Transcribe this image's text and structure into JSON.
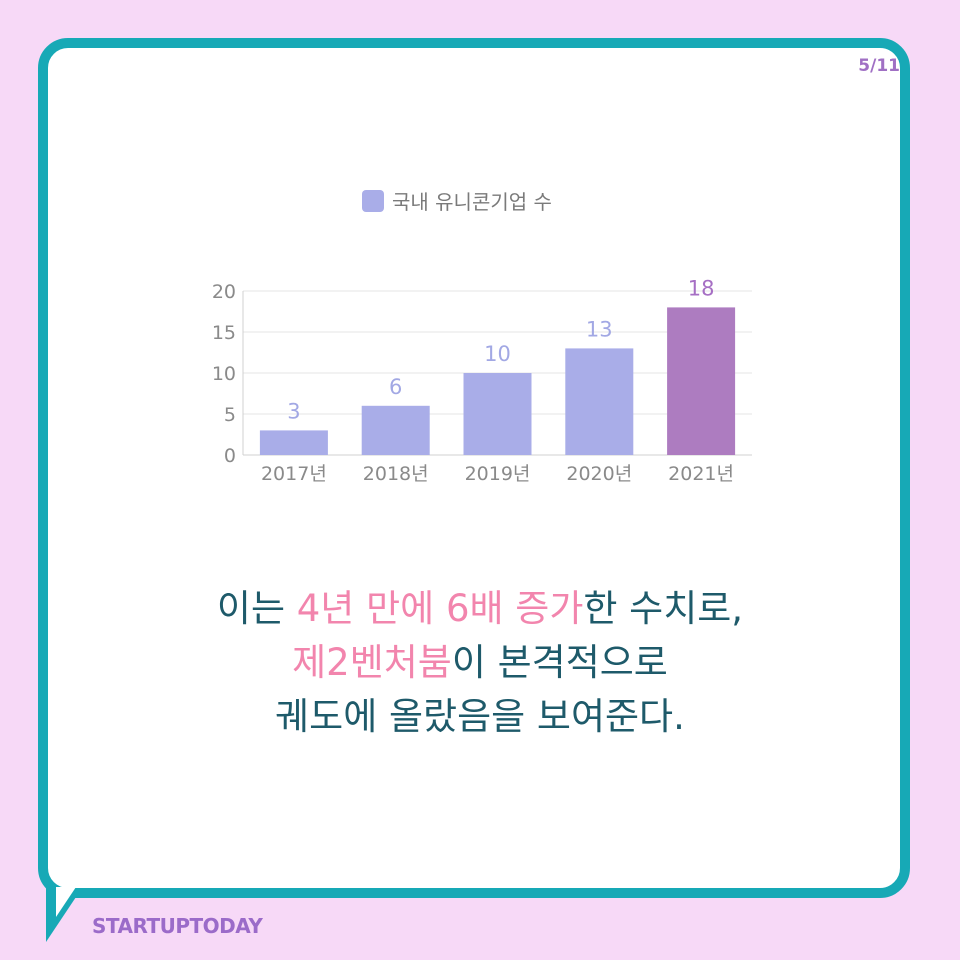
{
  "page_indicator": "5/11",
  "brand": "STARTUPTODAY",
  "colors": {
    "background": "#f7d9f7",
    "card_border": "#17a9b6",
    "bar_default": "#a9ade8",
    "bar_highlight": "#ad7cc0",
    "caption_text": "#1e5a6a",
    "caption_highlight": "#f285ad"
  },
  "chart_data": {
    "type": "bar",
    "legend": "국내 유니콘기업 수",
    "categories": [
      "2017년",
      "2018년",
      "2019년",
      "2020년",
      "2021년"
    ],
    "series": [
      {
        "name": "국내 유니콘기업 수",
        "values": [
          3,
          6,
          10,
          13,
          18
        ]
      }
    ],
    "highlight_index": 4,
    "ylim": [
      0,
      20
    ],
    "yticks": [
      0,
      5,
      10,
      15,
      20
    ],
    "grid": true,
    "legend_position": "top"
  },
  "caption": {
    "line1": [
      {
        "text": "이는 ",
        "hl": false
      },
      {
        "text": "4년 만에 6배 증가",
        "hl": true
      },
      {
        "text": "한 수치로,",
        "hl": false
      }
    ],
    "line2": [
      {
        "text": "제2벤처붐",
        "hl": true
      },
      {
        "text": "이 본격적으로",
        "hl": false
      }
    ],
    "line3": [
      {
        "text": "궤도에 올랐음을 보여준다.",
        "hl": false
      }
    ]
  }
}
